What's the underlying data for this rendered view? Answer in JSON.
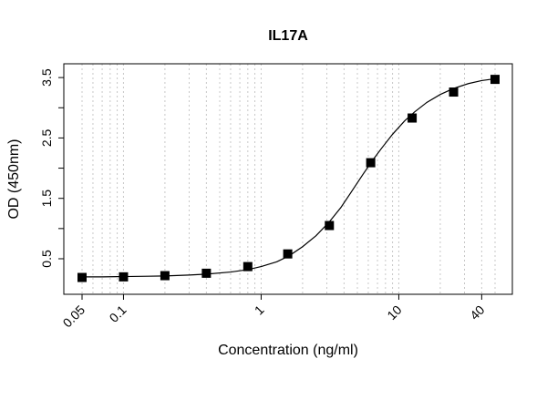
{
  "chart_data": {
    "type": "scatter",
    "title": "IL17A",
    "xlabel": "Concentration (ng/ml)",
    "ylabel": "OD (450nm)",
    "x_scale": "log",
    "xlim": [
      0.05,
      50
    ],
    "ylim": [
      0.1,
      3.6
    ],
    "x_tick_values": [
      0.05,
      0.1,
      1,
      10,
      40
    ],
    "x_tick_labels": [
      "0.05",
      "0.1",
      "1",
      "10",
      "40"
    ],
    "y_ticks": [
      0.5,
      1,
      1.5,
      2,
      2.5,
      3,
      3.5
    ],
    "y_tick_labels": [
      "0.5",
      "",
      "1.5",
      "",
      "2.5",
      "",
      "3.5"
    ],
    "grid": "vertical dotted gray lines at log-decade subdivisions",
    "points": {
      "x": [
        0.05,
        0.1,
        0.2,
        0.4,
        0.8,
        1.56,
        3.13,
        6.25,
        12.5,
        25,
        50
      ],
      "y": [
        0.19,
        0.2,
        0.22,
        0.26,
        0.37,
        0.58,
        1.05,
        2.09,
        2.83,
        3.26,
        3.47
      ]
    },
    "fit": {
      "type": "4PL",
      "description": "smooth sigmoidal fitted curve through the points",
      "x": [
        0.05,
        0.07,
        0.1,
        0.15,
        0.2,
        0.3,
        0.4,
        0.6,
        0.8,
        1.0,
        1.3,
        1.6,
        2.0,
        2.5,
        3.1,
        3.8,
        4.5,
        5.5,
        6.5,
        7.5,
        9,
        11,
        13,
        16,
        20,
        25,
        32,
        40,
        50
      ],
      "y": [
        0.2,
        0.2,
        0.205,
        0.21,
        0.215,
        0.23,
        0.245,
        0.28,
        0.32,
        0.37,
        0.45,
        0.55,
        0.7,
        0.88,
        1.1,
        1.35,
        1.6,
        1.9,
        2.14,
        2.33,
        2.56,
        2.78,
        2.93,
        3.09,
        3.22,
        3.32,
        3.4,
        3.45,
        3.48
      ]
    },
    "marker": "filled square",
    "color": "#000000"
  }
}
